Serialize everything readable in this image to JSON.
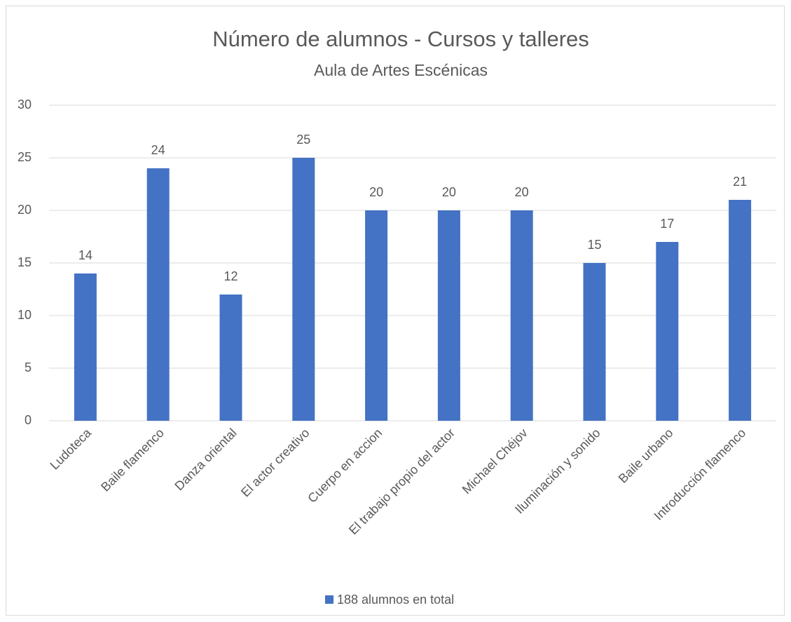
{
  "chart_data": {
    "type": "bar",
    "title": "Número de alumnos - Cursos y talleres",
    "subtitle": "Aula de Artes Escénicas",
    "categories": [
      "Ludoteca",
      "Baile flamenco",
      "Danza oriental",
      "El actor creativo",
      "Cuerpo en accion",
      "El trabajo propio del actor",
      "Michael Chéjov",
      "Iluminación y sonido",
      "Baile urbano",
      "Introducción flamenco"
    ],
    "series": [
      {
        "name": "188 alumnos en total",
        "color": "#4472c4",
        "values": [
          14,
          24,
          12,
          25,
          20,
          20,
          20,
          15,
          17,
          21
        ]
      }
    ],
    "ylim": [
      0,
      30
    ],
    "yticks": [
      0,
      5,
      10,
      15,
      20,
      25,
      30
    ],
    "grid": true,
    "legend": "bottom"
  }
}
